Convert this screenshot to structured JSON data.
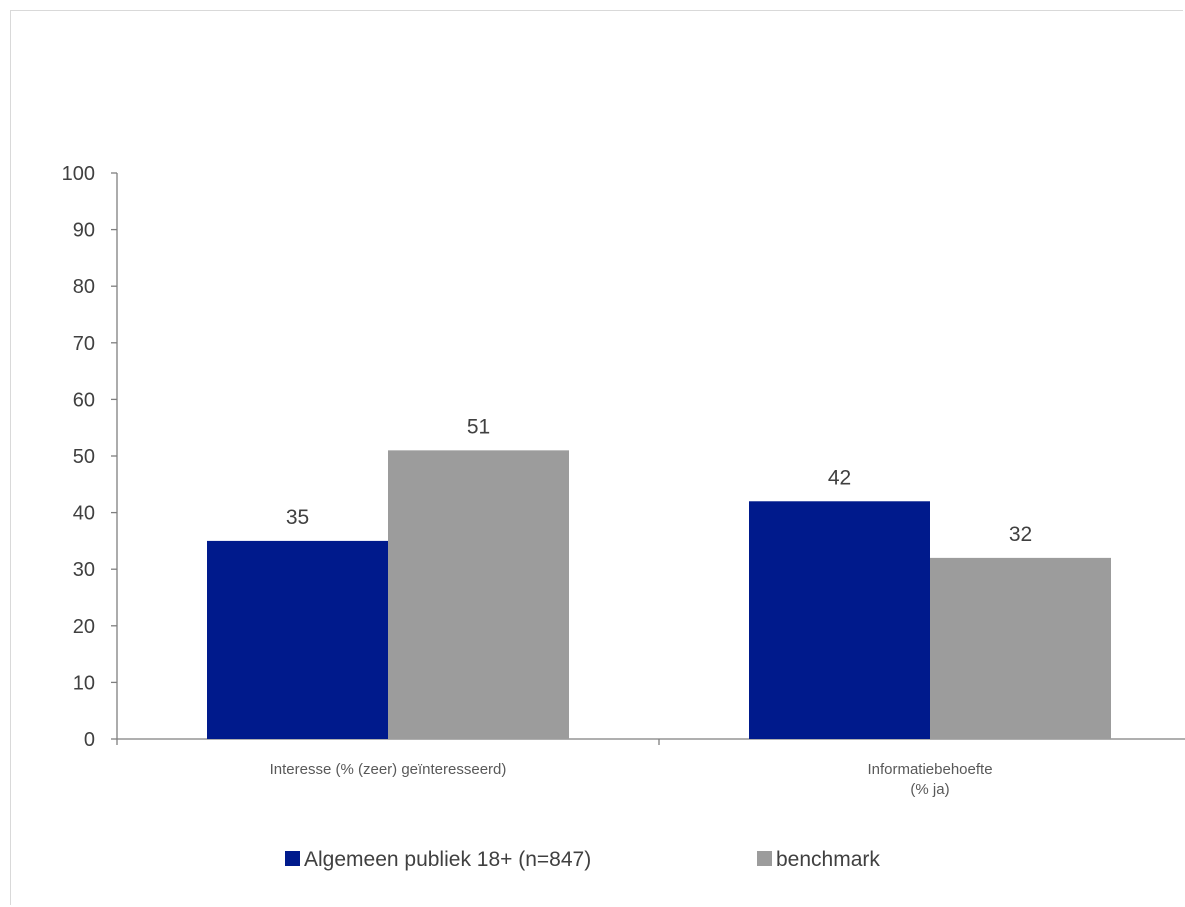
{
  "chart_data": {
    "type": "bar",
    "categories": [
      [
        "Interesse (% (zeer) geïnteresseerd)"
      ],
      [
        "Informatiebehoefte",
        "(% ja)"
      ]
    ],
    "series": [
      {
        "name": "Algemeen publiek 18+ (n=847)",
        "values": [
          35,
          42
        ],
        "color": "#001a8c"
      },
      {
        "name": "benchmark",
        "values": [
          51,
          32
        ],
        "color": "#9c9c9c"
      }
    ],
    "ylim": [
      0,
      100
    ],
    "yticks": [
      0,
      10,
      20,
      30,
      40,
      50,
      60,
      70,
      80,
      90,
      100
    ],
    "data_labels": true,
    "grid": false,
    "legend_position": "bottom"
  }
}
